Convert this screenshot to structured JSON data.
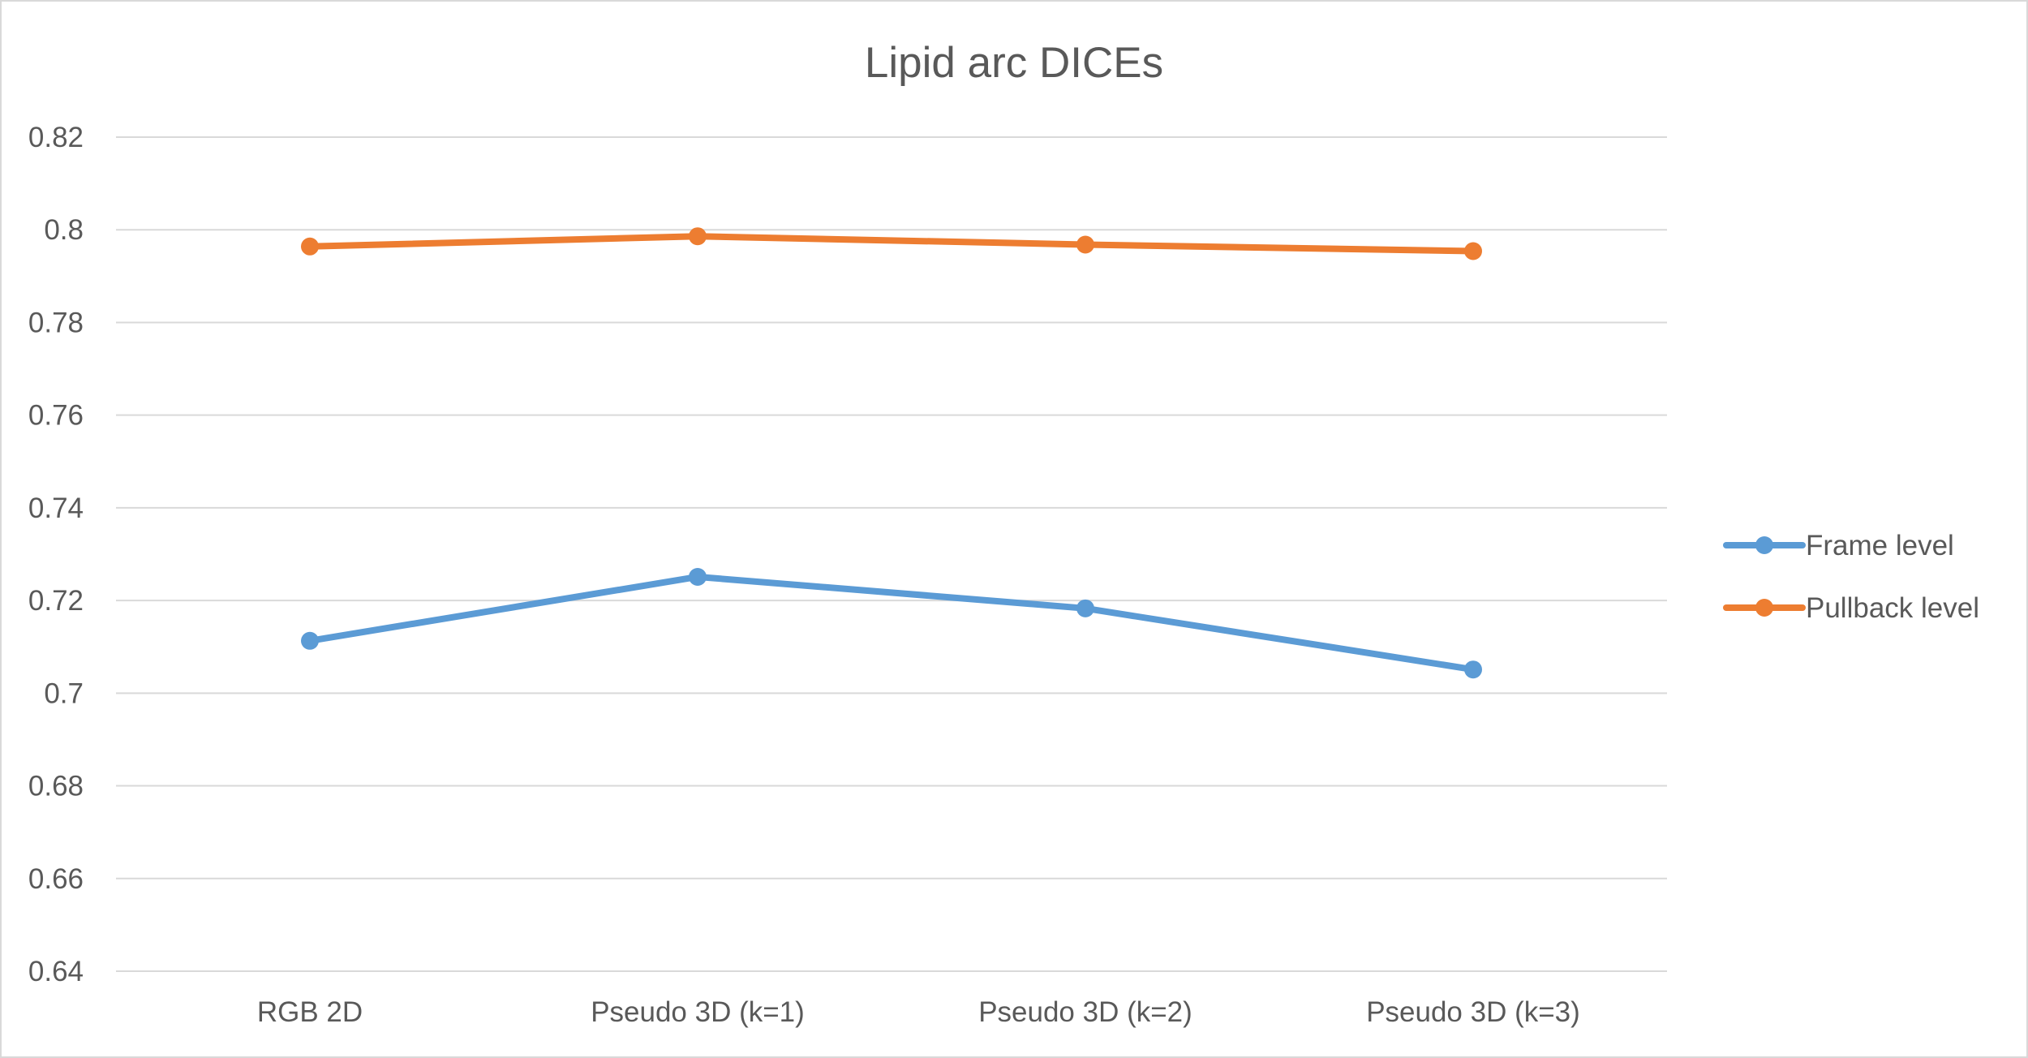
{
  "chart_data": {
    "type": "line",
    "title": "Lipid arc DICEs",
    "xlabel": "",
    "ylabel": "",
    "categories": [
      "RGB 2D",
      "Pseudo 3D (k=1)",
      "Pseudo 3D (k=2)",
      "Pseudo 3D (k=3)"
    ],
    "ylim": [
      0.64,
      0.82
    ],
    "yticks": [
      0.64,
      0.66,
      0.68,
      0.7,
      0.72,
      0.74,
      0.76,
      0.78,
      0.8,
      0.82
    ],
    "ytick_labels": [
      "0.64",
      "0.66",
      "0.68",
      "0.7",
      "0.72",
      "0.74",
      "0.76",
      "0.78",
      "0.8",
      "0.82"
    ],
    "grid": true,
    "legend_position": "right",
    "series": [
      {
        "name": "Frame level",
        "color": "#5b9bd5",
        "values": [
          0.7113,
          0.7251,
          0.7183,
          0.7051
        ]
      },
      {
        "name": "Pullback level",
        "color": "#ed7d31",
        "values": [
          0.7964,
          0.7986,
          0.7968,
          0.7954
        ]
      }
    ]
  }
}
